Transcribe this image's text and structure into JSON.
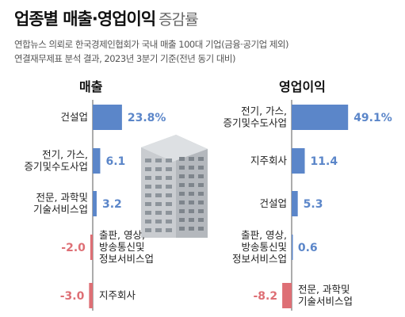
{
  "header": {
    "title": "업종별 매출·영업이익",
    "title_suffix": "증감률",
    "source_line1": "연합뉴스 의뢰로 한국경제인협회가 국내 매출 100대 기업(금융·공기업 제외)",
    "source_line2": "연결재무제표 분석 결과, 2023년 3분기 기준(전년 동기 대비)"
  },
  "colors": {
    "positive": "#5b86c9",
    "negative": "#de6f75",
    "axis": "#7f7f7f",
    "building": "#c9ccd0"
  },
  "chart_data": [
    {
      "type": "bar",
      "orientation": "horizontal",
      "title": "매출",
      "categories": [
        [
          "건설업"
        ],
        [
          "전기, 가스,",
          "증기및수도사업"
        ],
        [
          "전문, 과학및",
          "기술서비스업"
        ],
        [
          "출판, 영상,",
          "방송통신및",
          "정보서비스업"
        ],
        [
          "지주회사"
        ]
      ],
      "values": [
        23.8,
        6.1,
        3.2,
        -2.0,
        -3.0
      ],
      "value_labels": [
        "23.8%",
        "6.1",
        "3.2",
        "-2.0",
        "-3.0"
      ],
      "unit": "%"
    },
    {
      "type": "bar",
      "orientation": "horizontal",
      "title": "영업이익",
      "categories": [
        [
          "전기, 가스,",
          "증기및수도사업"
        ],
        [
          "지주회사"
        ],
        [
          "건설업"
        ],
        [
          "출판, 영상,",
          "방송통신및",
          "정보서비스업"
        ],
        [
          "전문, 과학및",
          "기술서비스업"
        ]
      ],
      "values": [
        49.1,
        11.4,
        5.3,
        0.6,
        -8.2
      ],
      "value_labels": [
        "49.1%",
        "11.4",
        "5.3",
        "0.6",
        "-8.2"
      ],
      "unit": "%"
    }
  ]
}
